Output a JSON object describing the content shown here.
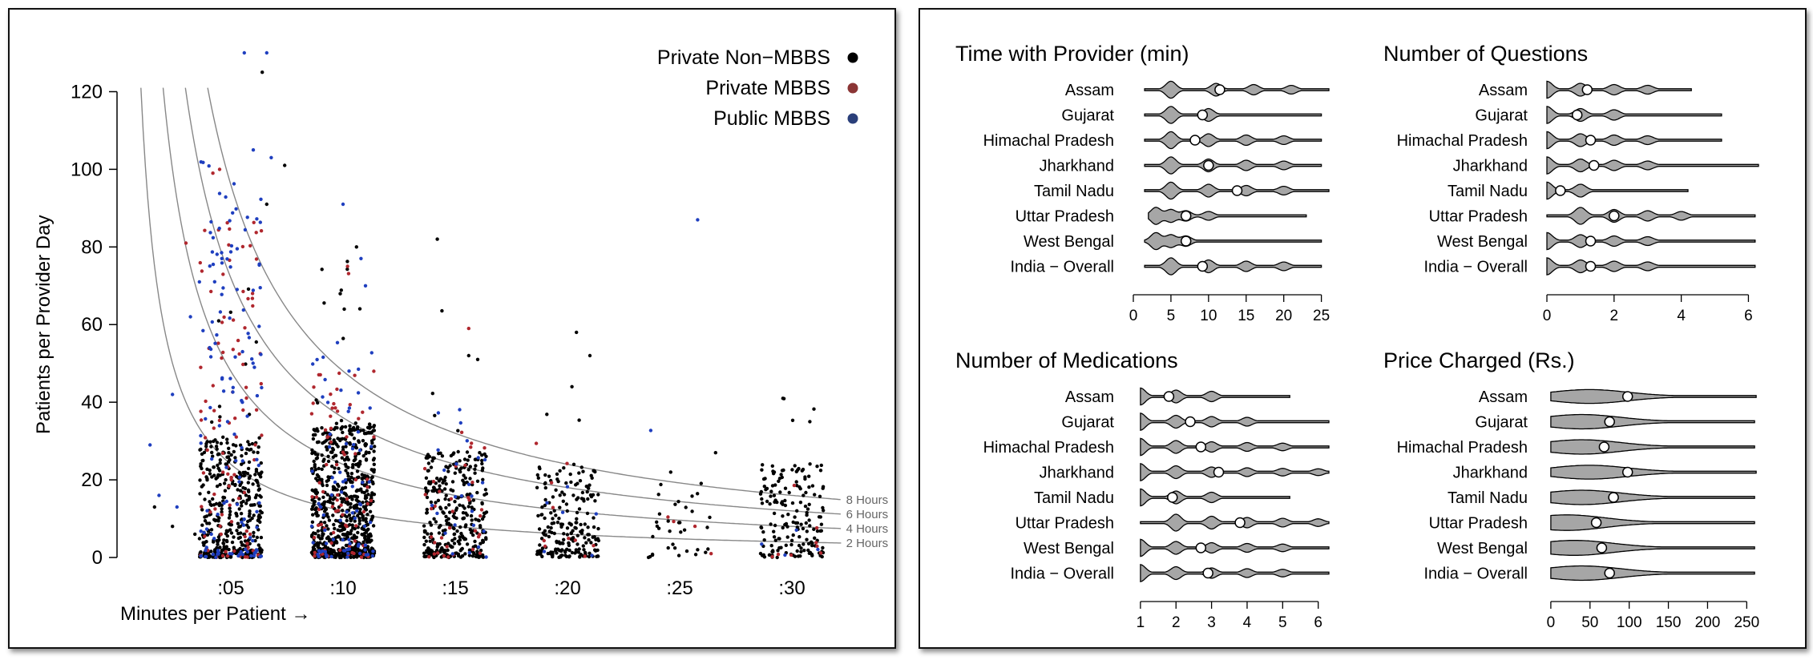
{
  "chart_data": [
    {
      "type": "scatter",
      "title": "",
      "xlabel": "Minutes per Patient →",
      "ylabel": "Patients per Provider Day",
      "x_tick_labels": [
        ":05",
        ":10",
        ":15",
        ":20",
        ":25",
        ":30"
      ],
      "x_tick_values": [
        5,
        10,
        15,
        20,
        25,
        30
      ],
      "y_ticks": [
        0,
        20,
        40,
        60,
        80,
        100,
        120
      ],
      "xlim": [
        0.5,
        33
      ],
      "ylim": [
        0,
        130
      ],
      "grid": false,
      "legend_position": "top-right",
      "series": [
        {
          "name": "Private Non−MBBS",
          "color": "#000000",
          "x_jitter": 1.4,
          "groups": [
            {
              "x": 5,
              "count": 420,
              "median": 9,
              "max": 125
            },
            {
              "x": 10,
              "count": 760,
              "median": 10,
              "max": 80
            },
            {
              "x": 15,
              "count": 330,
              "median": 8,
              "max": 82
            },
            {
              "x": 20,
              "count": 210,
              "median": 7,
              "max": 58
            },
            {
              "x": 25,
              "count": 35,
              "median": 6,
              "max": 30
            },
            {
              "x": 30,
              "count": 170,
              "median": 7,
              "max": 41
            }
          ],
          "extra_points": [
            [
              6.4,
              125
            ],
            [
              7.4,
              101
            ],
            [
              6.6,
              91
            ],
            [
              14.2,
              82
            ],
            [
              10.6,
              80
            ],
            [
              20.4,
              58
            ],
            [
              21.0,
              52
            ],
            [
              20.2,
              44
            ],
            [
              29.6,
              41
            ],
            [
              30.8,
              35
            ],
            [
              15.6,
              52
            ],
            [
              16.0,
              51
            ],
            [
              1.6,
              13
            ],
            [
              2.4,
              8
            ],
            [
              3.4,
              6
            ],
            [
              26.6,
              27
            ],
            [
              24.6,
              22
            ]
          ]
        },
        {
          "name": "Private MBBS",
          "color": "#b0272e",
          "x_jitter": 1.4,
          "groups": [
            {
              "x": 5,
              "count": 95,
              "median": 25,
              "max": 100
            },
            {
              "x": 10,
              "count": 75,
              "median": 14,
              "max": 76
            },
            {
              "x": 15,
              "count": 35,
              "median": 10,
              "max": 59
            },
            {
              "x": 20,
              "count": 10,
              "median": 8,
              "max": 30
            },
            {
              "x": 25,
              "count": 3,
              "median": 6,
              "max": 20
            },
            {
              "x": 30,
              "count": 8,
              "median": 9,
              "max": 23
            }
          ],
          "extra_points": [
            [
              3.0,
              81
            ],
            [
              4.5,
              100
            ],
            [
              4.2,
              99
            ],
            [
              15.6,
              59
            ],
            [
              10.2,
              75
            ],
            [
              26.4,
              1
            ]
          ]
        },
        {
          "name": "Public MBBS",
          "color": "#1f3fbf",
          "x_jitter": 1.4,
          "groups": [
            {
              "x": 5,
              "count": 130,
              "median": 30,
              "max": 130
            },
            {
              "x": 10,
              "count": 80,
              "median": 16,
              "max": 91
            },
            {
              "x": 15,
              "count": 25,
              "median": 12,
              "max": 40
            },
            {
              "x": 20,
              "count": 6,
              "median": 9,
              "max": 20
            },
            {
              "x": 25,
              "count": 1,
              "median": 87,
              "max": 87
            },
            {
              "x": 30,
              "count": 4,
              "median": 7,
              "max": 14
            }
          ],
          "extra_points": [
            [
              5.6,
              130
            ],
            [
              6.6,
              130
            ],
            [
              6.0,
              105
            ],
            [
              6.8,
              103
            ],
            [
              3.6,
              71
            ],
            [
              3.2,
              62
            ],
            [
              1.4,
              29
            ],
            [
              2.4,
              42
            ],
            [
              4.6,
              77
            ],
            [
              10.0,
              91
            ],
            [
              10.8,
              77
            ],
            [
              11.0,
              70
            ],
            [
              25.8,
              87
            ],
            [
              1.8,
              16
            ],
            [
              2.6,
              13
            ]
          ]
        }
      ],
      "isolines": [
        {
          "label": "8 Hours",
          "hours": 8
        },
        {
          "label": "6 Hours",
          "hours": 6
        },
        {
          "label": "4 Hours",
          "hours": 4
        },
        {
          "label": "2 Hours",
          "hours": 2
        }
      ]
    },
    {
      "type": "violin",
      "title": "Time with Provider (min)",
      "categories": [
        "Assam",
        "Gujarat",
        "Himachal Pradesh",
        "Jharkhand",
        "Tamil Nadu",
        "Uttar Pradesh",
        "West Bengal",
        "India − Overall"
      ],
      "xlim": [
        0,
        26
      ],
      "x_ticks": [
        0,
        5,
        10,
        15,
        20,
        25
      ],
      "means": [
        11.5,
        9.2,
        8.2,
        10.0,
        13.8,
        7.0,
        7.0,
        9.2
      ],
      "ranges": [
        [
          1.5,
          26
        ],
        [
          1.5,
          25
        ],
        [
          1.5,
          25
        ],
        [
          1.5,
          25
        ],
        [
          1.5,
          26
        ],
        [
          2,
          23
        ],
        [
          1.5,
          25
        ],
        [
          1.5,
          25
        ]
      ],
      "modes": [
        [
          5,
          11,
          16,
          21
        ],
        [
          5,
          10
        ],
        [
          5,
          10,
          15,
          20
        ],
        [
          5,
          10,
          15,
          20
        ],
        [
          5,
          10,
          15,
          20
        ],
        [
          3,
          5,
          7,
          10
        ],
        [
          3,
          5,
          7
        ],
        [
          5,
          10,
          15,
          20
        ]
      ]
    },
    {
      "type": "violin",
      "title": "Number of Questions",
      "categories": [
        "Assam",
        "Gujarat",
        "Himachal Pradesh",
        "Jharkhand",
        "Tamil Nadu",
        "Uttar Pradesh",
        "West Bengal",
        "India − Overall"
      ],
      "xlim": [
        0,
        6.3
      ],
      "x_ticks": [
        0,
        2,
        4,
        6
      ],
      "means": [
        1.2,
        0.9,
        1.3,
        1.4,
        0.4,
        2.0,
        1.3,
        1.3
      ],
      "ranges": [
        [
          0,
          4.3
        ],
        [
          0,
          5.2
        ],
        [
          0,
          5.2
        ],
        [
          0,
          6.3
        ],
        [
          0,
          4.2
        ],
        [
          0,
          6.2
        ],
        [
          0,
          6.2
        ],
        [
          0,
          6.2
        ]
      ],
      "modes": [
        [
          0,
          1,
          2,
          3
        ],
        [
          0,
          1,
          2
        ],
        [
          0,
          1,
          2,
          3
        ],
        [
          0,
          1,
          2,
          3
        ],
        [
          0,
          1
        ],
        [
          1,
          2,
          3,
          4
        ],
        [
          0,
          1,
          2,
          3
        ],
        [
          0,
          1,
          2,
          3
        ]
      ]
    },
    {
      "type": "violin",
      "title": "Number of Medications",
      "categories": [
        "Assam",
        "Gujarat",
        "Himachal Pradesh",
        "Jharkhand",
        "Tamil Nadu",
        "Uttar Pradesh",
        "West Bengal",
        "India − Overall"
      ],
      "xlim": [
        0.8,
        6.3
      ],
      "x_ticks": [
        1,
        2,
        3,
        4,
        5,
        6
      ],
      "means": [
        1.8,
        2.4,
        2.7,
        3.2,
        1.9,
        3.8,
        2.7,
        2.9
      ],
      "ranges": [
        [
          1,
          5.2
        ],
        [
          1,
          6.3
        ],
        [
          1,
          6.3
        ],
        [
          1,
          6.3
        ],
        [
          1,
          5.2
        ],
        [
          1,
          6.3
        ],
        [
          1,
          6.3
        ],
        [
          1,
          6.3
        ]
      ],
      "modes": [
        [
          1,
          2,
          3
        ],
        [
          1,
          2,
          3,
          4
        ],
        [
          1,
          2,
          3,
          4,
          5
        ],
        [
          1,
          2,
          3,
          4,
          5,
          6
        ],
        [
          1,
          2,
          3
        ],
        [
          2,
          3,
          4,
          5,
          6
        ],
        [
          1,
          2,
          3,
          4,
          5
        ],
        [
          1,
          2,
          3,
          4,
          5
        ]
      ]
    },
    {
      "type": "violin",
      "title": "Price Charged (Rs.)",
      "categories": [
        "Assam",
        "Gujarat",
        "Himachal Pradesh",
        "Jharkhand",
        "Tamil Nadu",
        "Uttar Pradesh",
        "West Bengal",
        "India − Overall"
      ],
      "xlim": [
        -5,
        265
      ],
      "x_ticks": [
        0,
        50,
        100,
        150,
        200,
        250
      ],
      "means": [
        98,
        75,
        68,
        98,
        80,
        58,
        65,
        75
      ],
      "ranges": [
        [
          0,
          262
        ],
        [
          0,
          260
        ],
        [
          0,
          260
        ],
        [
          0,
          262
        ],
        [
          0,
          260
        ],
        [
          0,
          260
        ],
        [
          0,
          260
        ],
        [
          0,
          260
        ]
      ],
      "modes": [
        [
          60
        ],
        [
          50
        ],
        [
          50
        ],
        [
          60
        ],
        [
          50,
          100
        ],
        [
          30
        ],
        [
          40
        ],
        [
          50
        ]
      ]
    }
  ]
}
